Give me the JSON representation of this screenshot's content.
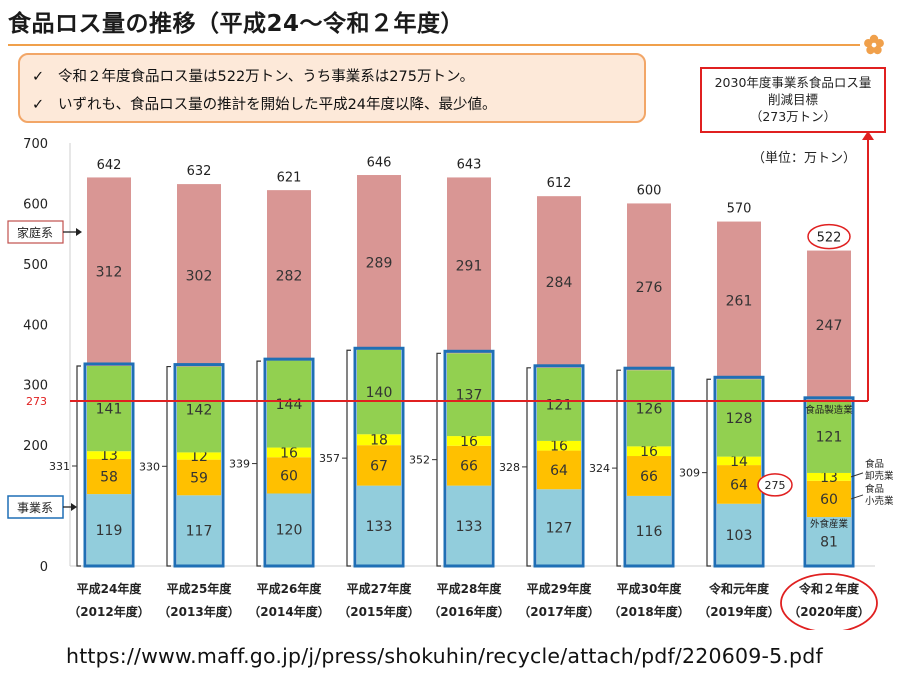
{
  "title": "食品ロス量の推移（平成24～令和２年度）",
  "summary": [
    {
      "check": "✓",
      "text": "令和２年度食品ロス量は522万トン、うち事業系は275万トン。"
    },
    {
      "check": "✓",
      "text": "いずれも、食品ロス量の推計を開始した平成24年度以降、最少値。"
    }
  ],
  "target_box": {
    "line1": "2030年度事業系食品ロス量",
    "line2": "削減目標",
    "line3": "（273万トン）"
  },
  "source_url": "https://www.maff.go.jp/j/press/shokuhin/recycle/attach/pdf/220609-5.pdf",
  "colors": {
    "household": "#d99694",
    "manufacturing": "#92d050",
    "wholesale": "#ffff00",
    "retail": "#ffc000",
    "food_service": "#92cddc",
    "business_outline": "#1f6fb5",
    "target_line": "#e02020",
    "accent_orange": "#f0a04b"
  },
  "chart_data": {
    "type": "bar",
    "stacked": true,
    "unit": "（単位：万トン）",
    "ylim": [
      0,
      700
    ],
    "yticks": [
      0,
      100,
      200,
      300,
      400,
      500,
      600,
      700
    ],
    "grid": false,
    "categories": [
      {
        "line1": "平成24年度",
        "line2": "（2012年度）"
      },
      {
        "line1": "平成25年度",
        "line2": "（2013年度）"
      },
      {
        "line1": "平成26年度",
        "line2": "（2014年度）"
      },
      {
        "line1": "平成27年度",
        "line2": "（2015年度）"
      },
      {
        "line1": "平成28年度",
        "line2": "（2016年度）"
      },
      {
        "line1": "平成29年度",
        "line2": "（2017年度）"
      },
      {
        "line1": "平成30年度",
        "line2": "（2018年度）"
      },
      {
        "line1": "令和元年度",
        "line2": "（2019年度）"
      },
      {
        "line1": "令和２年度",
        "line2": "（2020年度）"
      }
    ],
    "series": [
      {
        "key": "food_service",
        "values": [
          119,
          117,
          120,
          133,
          133,
          127,
          116,
          103,
          81
        ]
      },
      {
        "key": "retail",
        "values": [
          58,
          59,
          60,
          67,
          66,
          64,
          66,
          64,
          60
        ]
      },
      {
        "key": "wholesale",
        "values": [
          13,
          12,
          16,
          18,
          16,
          16,
          16,
          14,
          13
        ]
      },
      {
        "key": "manufacturing",
        "values": [
          141,
          142,
          144,
          140,
          137,
          121,
          126,
          128,
          121
        ]
      },
      {
        "key": "household",
        "values": [
          312,
          302,
          282,
          289,
          291,
          284,
          276,
          261,
          247
        ]
      }
    ],
    "totals": [
      642,
      632,
      621,
      646,
      643,
      612,
      600,
      570,
      522
    ],
    "business_totals": [
      331,
      330,
      339,
      357,
      352,
      328,
      324,
      309,
      275
    ],
    "target": {
      "value": 273,
      "label": "273"
    },
    "labels": {
      "household": "家庭系",
      "business": "事業系",
      "manufacturing": "食品製造業",
      "wholesale_1": "食品",
      "wholesale_2": "卸売業",
      "retail_1": "食品",
      "retail_2": "小売業",
      "food_service": "外食産業"
    }
  }
}
